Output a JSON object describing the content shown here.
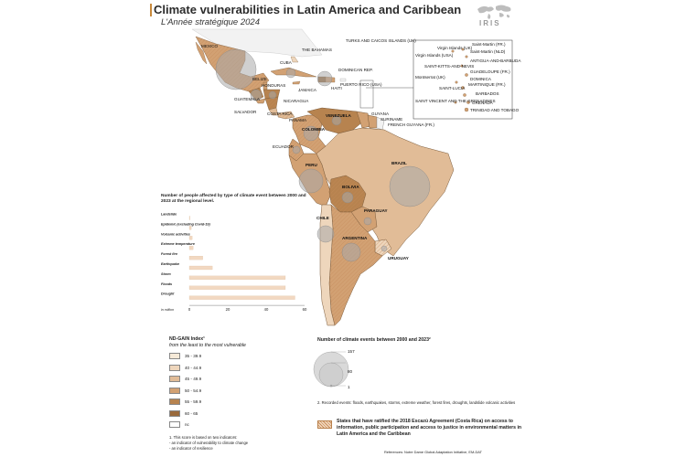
{
  "header": {
    "title": "Climate vulnerabilities in Latin America and Caribbean",
    "subtitle": "L'Année stratégique 2024",
    "logo_text": "IRIS"
  },
  "colors": {
    "nd_35_39": "#f6ead8",
    "nd_40_44": "#eed6bc",
    "nd_45_49": "#e1bc97",
    "nd_50_54": "#d2a173",
    "nd_55_59": "#b7834f",
    "nd_60_65": "#9a6a3c",
    "nc": "#ffffff",
    "event_circle": "#a9a9a9",
    "bar_fill": "#f2d8c1",
    "title_accent": "#c98a3c"
  },
  "labels": {
    "mexico": "MEXICO",
    "cuba": "CUBA",
    "bahamas": "THE BAHAMAS",
    "turks": "TURKS AND CAICOS ISLANDS (UK)",
    "dominican": "DOMINICAN REP.",
    "puerto_rico": "PUERTO RICO (USA)",
    "haiti": "HAITI",
    "jamaica": "JAMAICA",
    "belize": "BELIZE",
    "honduras": "HONDURAS",
    "guatemala": "GUATEMALA",
    "salvador": "SALVADOR",
    "nicaragua": "NICARAGUA",
    "costa_rica": "COSTA RICA",
    "panama": "PANAMA",
    "venezuela": "VENEZUELA",
    "guyana": "GUYANA",
    "suriname": "SURINAME",
    "french_guiana": "FRENCH GUYANA (FR.)",
    "colombia": "COLOMBIA",
    "ecuador": "ECUADOR",
    "peru": "PERU",
    "brazil": "BRAZIL",
    "bolivia": "BOLIVIA",
    "paraguay": "PARAGUAY",
    "chile": "CHILE",
    "argentina": "ARGENTINA",
    "uruguay": "URUGUAY"
  },
  "inset_labels": {
    "virgin_uk": "Virgin Islands (UK)",
    "virgin_usa": "Virgin Islands (USA)",
    "st_martin_fr": "Saint-Martin (FR.)",
    "st_martin_nld": "Saint-Martin (NLD)",
    "antigua": "ANTIGUA-AND-BARBUDA",
    "st_kitts": "SAINT-KITTS-AND-NEVIS",
    "guadeloupe": "GUADELOUPE (FR.)",
    "montserrat": "Montserrat (UK)",
    "dominica": "DOMINICA",
    "martinique": "MARTINIQUE (FR.)",
    "st_lucia": "SAINT-LUCIA",
    "barbados": "BARBADOS",
    "st_vincent": "SAINT VINCENT AND THE GRENADINES",
    "grenada": "GRENADA",
    "trinidad": "TRINIDAD AND TOBAGO"
  },
  "chart_data": {
    "type": "bar",
    "title": "Number of people affected by type of climate event between 2000 and 2023 at the regional level.",
    "categories": [
      "Landslide",
      "Epidemic (excluding Covid-19)",
      "Volcanic activities",
      "Extreme temperature",
      "Forest fire",
      "Earthquake",
      "Storm",
      "Floods",
      "Drought"
    ],
    "values": [
      0,
      1,
      1.5,
      2,
      7,
      12,
      50,
      50,
      55
    ],
    "xlabel": "in million",
    "xticks": [
      "0",
      "20",
      "40",
      "60"
    ],
    "xlim": [
      0,
      60
    ]
  },
  "legend": {
    "title": "ND-GAIN Index¹",
    "subtitle": "from the least to the most vulnerable",
    "items": [
      {
        "label": "35 - 39.9",
        "color": "#f6ead8"
      },
      {
        "label": "40 - 44.9",
        "color": "#eed6bc"
      },
      {
        "label": "45 - 49.9",
        "color": "#e1bc97"
      },
      {
        "label": "50 - 54.9",
        "color": "#d2a173"
      },
      {
        "label": "55 - 59.9",
        "color": "#b7834f"
      },
      {
        "label": "60 - 65",
        "color": "#9a6a3c"
      },
      {
        "label": "nc",
        "color": "#ffffff"
      }
    ],
    "footnote_1": "1.  This score is based on two indicators:",
    "footnote_2": "- an indicator of vulnerability to climate change",
    "footnote_3": "- an indicator of resilience"
  },
  "events_legend": {
    "title": "Number of climate events between 2000 and 2023²",
    "values": [
      "157",
      "80",
      "1"
    ],
    "note": "2.  Recorded events: floods, earthquakes, storms, extreme weather, forest fires, droughts, landslide volcanic activities"
  },
  "escazu": {
    "text": "States that have ratified the 2018 Escazú Agreement (Costa Rica) on access to information, public participation and access to justice in environmental matters in Latin America and the Caribbean"
  },
  "references": "References: Notre Dame Global Adaptation Initiative, EM-DAT"
}
